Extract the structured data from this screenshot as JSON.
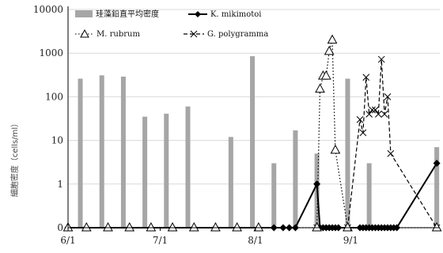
{
  "chart_data": {
    "type": "bar",
    "x_axis": {
      "kind": "date",
      "range": [
        "2023-06-01",
        "2023-09-30"
      ],
      "ticks": [
        {
          "date": "2023-06-01",
          "label": "6/1"
        },
        {
          "date": "2023-07-01",
          "label": "7/1"
        },
        {
          "date": "2023-08-01",
          "label": "8/1"
        },
        {
          "date": "2023-09-01",
          "label": "9/1"
        }
      ]
    },
    "y_axis": {
      "scale": "log",
      "zero_at_bottom": true,
      "ylim": [
        0,
        10000
      ],
      "ticks": [
        {
          "value": 0,
          "label": "0"
        },
        {
          "value": 1,
          "label": "1"
        },
        {
          "value": 10,
          "label": "10"
        },
        {
          "value": 100,
          "label": "100"
        },
        {
          "value": 1000,
          "label": "1000"
        },
        {
          "value": 10000,
          "label": "10000"
        }
      ],
      "label": "細胞密度（cells/ml）"
    },
    "grid": true,
    "legend": {
      "placement": "top",
      "entries": [
        {
          "series": "bars",
          "label": "珪藻鉛直平均密度"
        },
        {
          "series": "kmik",
          "label": "K. mikimotoi"
        },
        {
          "series": "mrub",
          "label": "M. rubrum"
        },
        {
          "series": "gpoly",
          "label": "G. polygramma"
        }
      ]
    },
    "bars": {
      "name": "珪藻鉛直平均密度",
      "color": "#a6a6a6",
      "points": [
        {
          "x": "2023-06-05",
          "y": 260
        },
        {
          "x": "2023-06-12",
          "y": 310
        },
        {
          "x": "2023-06-19",
          "y": 290
        },
        {
          "x": "2023-06-26",
          "y": 35
        },
        {
          "x": "2023-07-03",
          "y": 41
        },
        {
          "x": "2023-07-10",
          "y": 60
        },
        {
          "x": "2023-07-24",
          "y": 12
        },
        {
          "x": "2023-07-31",
          "y": 850
        },
        {
          "x": "2023-08-07",
          "y": 3
        },
        {
          "x": "2023-08-14",
          "y": 17
        },
        {
          "x": "2023-08-21",
          "y": 5
        },
        {
          "x": "2023-08-31",
          "y": 260
        },
        {
          "x": "2023-09-07",
          "y": 3
        },
        {
          "x": "2023-09-29",
          "y": 7
        }
      ]
    },
    "series": [
      {
        "id": "kmik",
        "name": "K. mikimotoi",
        "style": "solid",
        "marker": "diamond",
        "color": "#000000",
        "points": [
          {
            "x": "2023-06-01",
            "y": 0
          },
          {
            "x": "2023-06-07",
            "y": 0
          },
          {
            "x": "2023-06-14",
            "y": 0
          },
          {
            "x": "2023-06-21",
            "y": 0
          },
          {
            "x": "2023-06-28",
            "y": 0
          },
          {
            "x": "2023-07-05",
            "y": 0
          },
          {
            "x": "2023-07-12",
            "y": 0
          },
          {
            "x": "2023-07-19",
            "y": 0
          },
          {
            "x": "2023-07-26",
            "y": 0
          },
          {
            "x": "2023-08-02",
            "y": 0
          },
          {
            "x": "2023-08-07",
            "y": 0
          },
          {
            "x": "2023-08-10",
            "y": 0
          },
          {
            "x": "2023-08-12",
            "y": 0
          },
          {
            "x": "2023-08-14",
            "y": 0
          },
          {
            "x": "2023-08-21",
            "y": 1
          },
          {
            "x": "2023-08-22",
            "y": 0
          },
          {
            "x": "2023-08-23",
            "y": 0
          },
          {
            "x": "2023-08-24",
            "y": 0
          },
          {
            "x": "2023-08-25",
            "y": 0
          },
          {
            "x": "2023-08-26",
            "y": 0
          },
          {
            "x": "2023-08-27",
            "y": 0
          },
          {
            "x": "2023-08-28",
            "y": 0
          },
          {
            "x": "2023-08-31",
            "y": 0
          },
          {
            "x": "2023-09-04",
            "y": 0
          },
          {
            "x": "2023-09-05",
            "y": 0
          },
          {
            "x": "2023-09-06",
            "y": 0
          },
          {
            "x": "2023-09-07",
            "y": 0
          },
          {
            "x": "2023-09-08",
            "y": 0
          },
          {
            "x": "2023-09-09",
            "y": 0
          },
          {
            "x": "2023-09-10",
            "y": 0
          },
          {
            "x": "2023-09-11",
            "y": 0
          },
          {
            "x": "2023-09-12",
            "y": 0
          },
          {
            "x": "2023-09-13",
            "y": 0
          },
          {
            "x": "2023-09-14",
            "y": 0
          },
          {
            "x": "2023-09-15",
            "y": 0
          },
          {
            "x": "2023-09-16",
            "y": 0
          },
          {
            "x": "2023-09-29",
            "y": 3
          }
        ]
      },
      {
        "id": "mrub",
        "name": "M. rubrum",
        "style": "dotted",
        "marker": "triangle",
        "color": "#000000",
        "points": [
          {
            "x": "2023-06-01",
            "y": 0
          },
          {
            "x": "2023-06-07",
            "y": 0
          },
          {
            "x": "2023-06-14",
            "y": 0
          },
          {
            "x": "2023-06-21",
            "y": 0
          },
          {
            "x": "2023-06-28",
            "y": 0
          },
          {
            "x": "2023-07-05",
            "y": 0
          },
          {
            "x": "2023-07-12",
            "y": 0
          },
          {
            "x": "2023-07-19",
            "y": 0
          },
          {
            "x": "2023-07-26",
            "y": 0
          },
          {
            "x": "2023-08-02",
            "y": 0
          },
          {
            "x": "2023-08-21",
            "y": 0
          },
          {
            "x": "2023-08-22",
            "y": 150
          },
          {
            "x": "2023-08-23",
            "y": 300
          },
          {
            "x": "2023-08-24",
            "y": 300
          },
          {
            "x": "2023-08-25",
            "y": 1100
          },
          {
            "x": "2023-08-26",
            "y": 2000
          },
          {
            "x": "2023-08-27",
            "y": 6
          },
          {
            "x": "2023-08-31",
            "y": 0
          },
          {
            "x": "2023-09-29",
            "y": 0
          }
        ]
      },
      {
        "id": "gpoly",
        "name": "G. polygramma",
        "style": "dashed",
        "marker": "x",
        "color": "#000000",
        "points": [
          {
            "x": "2023-08-21",
            "y": 0
          },
          {
            "x": "2023-08-31",
            "y": 0
          },
          {
            "x": "2023-09-04",
            "y": 30
          },
          {
            "x": "2023-09-05",
            "y": 15
          },
          {
            "x": "2023-09-06",
            "y": 280
          },
          {
            "x": "2023-09-07",
            "y": 40
          },
          {
            "x": "2023-09-08",
            "y": 50
          },
          {
            "x": "2023-09-09",
            "y": 50
          },
          {
            "x": "2023-09-10",
            "y": 40
          },
          {
            "x": "2023-09-11",
            "y": 720
          },
          {
            "x": "2023-09-12",
            "y": 40
          },
          {
            "x": "2023-09-13",
            "y": 100
          },
          {
            "x": "2023-09-14",
            "y": 5
          },
          {
            "x": "2023-09-29",
            "y": 0
          }
        ]
      }
    ]
  }
}
